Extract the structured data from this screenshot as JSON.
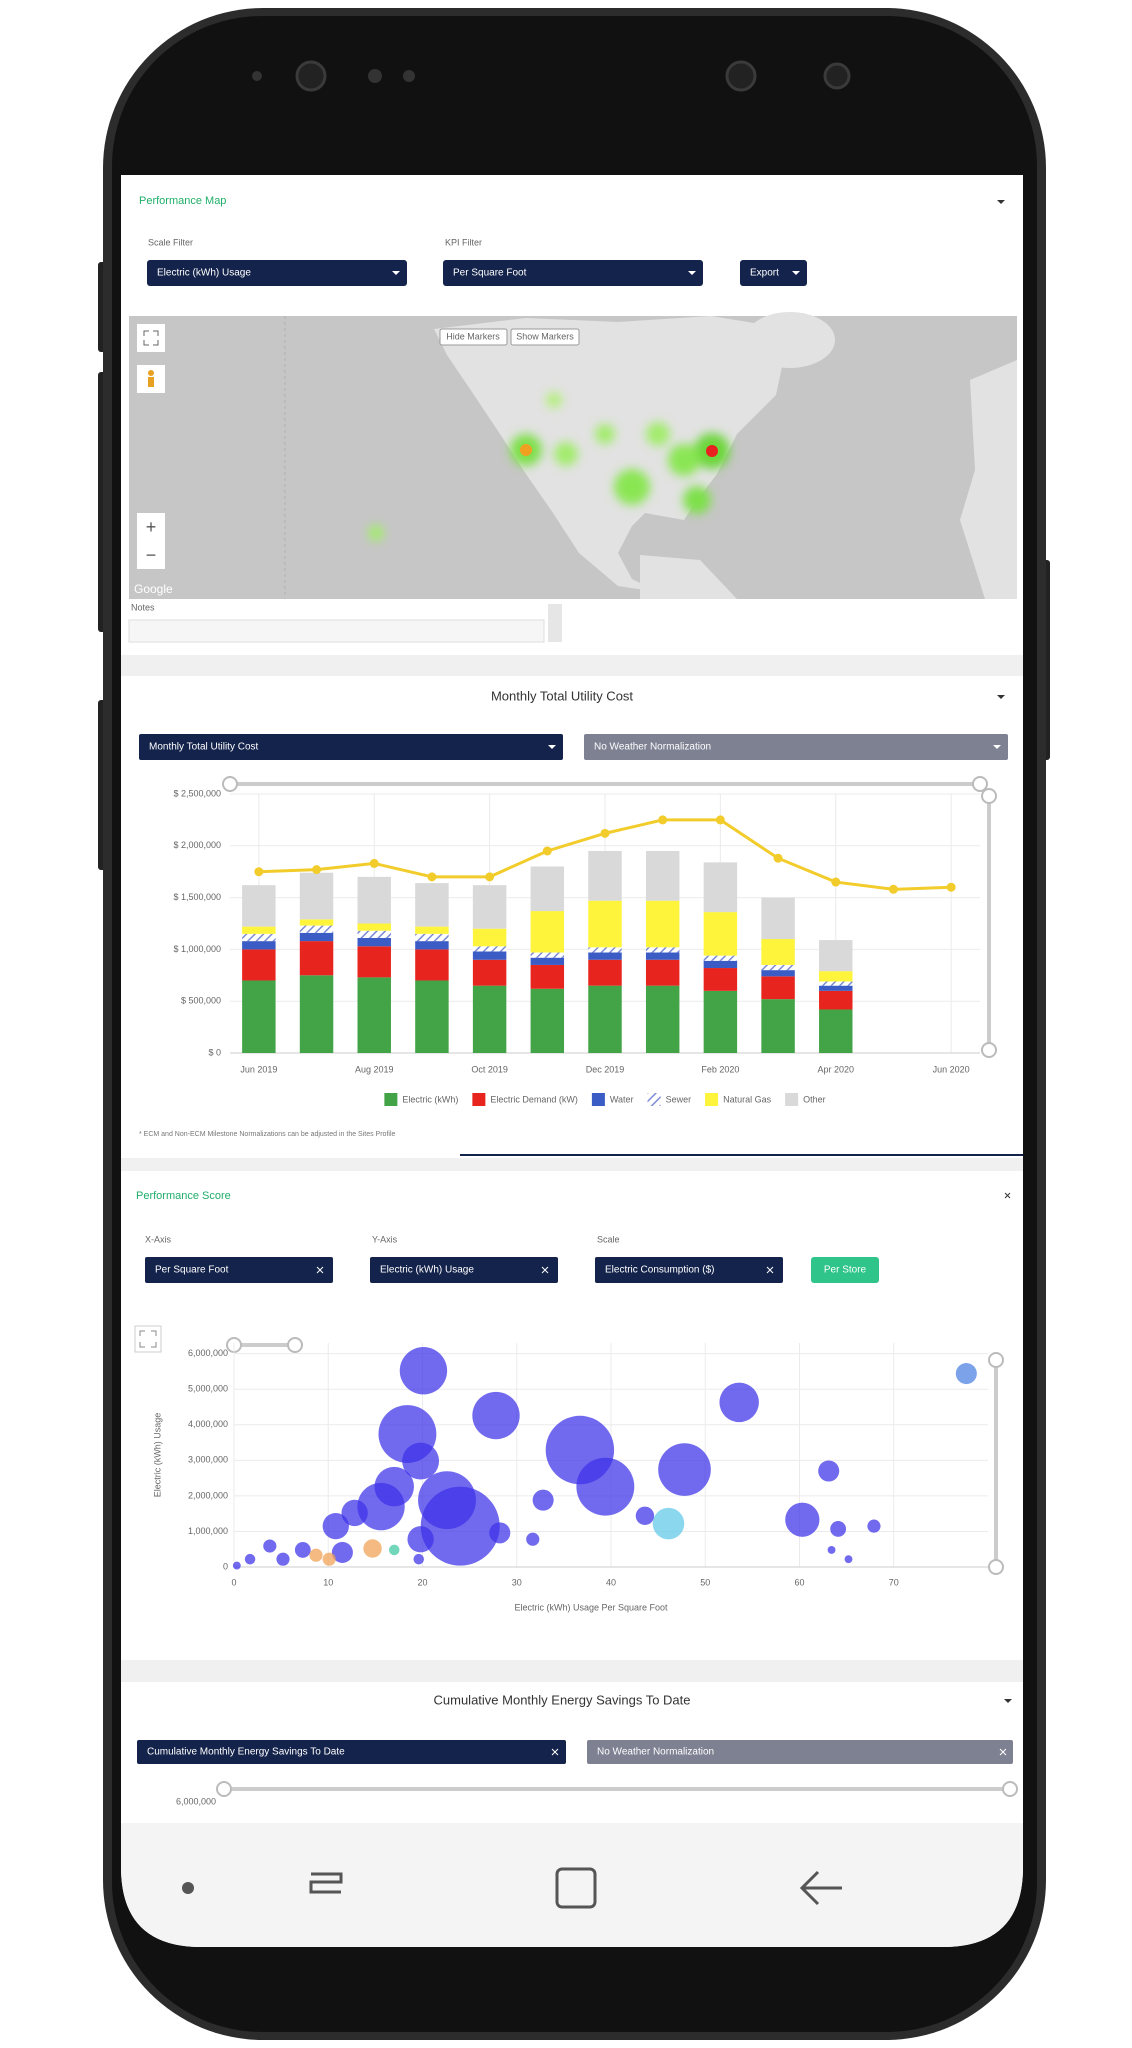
{
  "map_panel": {
    "title": "Performance Map",
    "scale_filter_label": "Scale Filter",
    "scale_filter": "Electric (kWh) Usage",
    "kpi_filter_label": "KPI Filter",
    "kpi_filter": "Per Square Foot",
    "export": "Export",
    "hide_markers": "Hide Markers",
    "show_markers": "Show Markers",
    "zoom_in": "+",
    "zoom_out": "−",
    "google": "Google",
    "notes": "Notes"
  },
  "cost_panel": {
    "title": "Monthly Total Utility Cost",
    "metric": "Monthly Total Utility Cost",
    "normalization": "No Weather Normalization",
    "footnote": "* ECM and Non-ECM Milestone Normalizations can be adjusted in the Sites Profile"
  },
  "score_panel": {
    "title": "Performance Score",
    "x_axis_label": "X-Axis",
    "x_axis": "Per Square Foot",
    "y_axis_label": "Y-Axis",
    "y_axis": "Electric (kWh) Usage",
    "scale_label": "Scale",
    "scale": "Electric Consumption ($)",
    "button": "Per Store"
  },
  "savings_panel": {
    "title": "Cumulative Monthly Energy Savings To Date",
    "metric": "Cumulative Monthly Energy Savings To Date",
    "normalization": "No Weather Normalization",
    "top_tick": "6,000,000"
  },
  "chart_data": [
    {
      "type": "bar",
      "stacked": true,
      "grid": true,
      "categories": [
        "Jun 2019",
        null,
        "Aug 2019",
        null,
        "Oct 2019",
        null,
        "Dec 2019",
        null,
        "Feb 2020",
        null,
        "Apr 2020",
        null,
        "Jun 2020"
      ],
      "series": [
        {
          "name": "Electric (kWh)",
          "color": "#43a447",
          "values": [
            700000,
            750000,
            730000,
            700000,
            650000,
            620000,
            650000,
            650000,
            600000,
            520000,
            420000,
            null,
            null
          ]
        },
        {
          "name": "Electric Demand (kW)",
          "color": "#e8241f",
          "values": [
            300000,
            330000,
            300000,
            300000,
            250000,
            230000,
            250000,
            250000,
            220000,
            220000,
            180000,
            null,
            null
          ]
        },
        {
          "name": "Water",
          "color": "#3a5cc4",
          "values": [
            80000,
            80000,
            80000,
            80000,
            80000,
            70000,
            70000,
            70000,
            70000,
            60000,
            50000,
            null,
            null
          ]
        },
        {
          "name": "Sewer",
          "color": "#7b8ad6",
          "pattern": "hatch",
          "values": [
            70000,
            70000,
            70000,
            70000,
            50000,
            50000,
            50000,
            50000,
            50000,
            50000,
            40000,
            null,
            null
          ]
        },
        {
          "name": "Natural Gas",
          "color": "#fdf43b",
          "values": [
            70000,
            60000,
            70000,
            70000,
            170000,
            400000,
            450000,
            450000,
            420000,
            250000,
            100000,
            null,
            null
          ]
        },
        {
          "name": "Other",
          "color": "#d9d9d9",
          "values": [
            400000,
            450000,
            450000,
            420000,
            420000,
            430000,
            480000,
            480000,
            480000,
            400000,
            300000,
            null,
            null
          ]
        }
      ],
      "line": {
        "color": "#f2cc2b",
        "values": [
          1750000,
          1770000,
          1830000,
          1700000,
          1700000,
          1950000,
          2120000,
          2250000,
          2250000,
          1880000,
          1650000,
          1580000,
          1600000
        ]
      },
      "ylim": [
        0,
        2500000
      ],
      "yticks": [
        {
          "value": 0,
          "label": "$ 0"
        },
        {
          "value": 500000,
          "label": "$ 500,000"
        },
        {
          "value": 1000000,
          "label": "$ 1,000,000"
        },
        {
          "value": 1500000,
          "label": "$ 1,500,000"
        },
        {
          "value": 2000000,
          "label": "$ 2,000,000"
        },
        {
          "value": 2500000,
          "label": "$ 2,500,000"
        }
      ]
    },
    {
      "type": "scatter",
      "grid": true,
      "x_label": "Electric (kWh) Usage Per Square Foot",
      "y_label": "Electric (kWh) Usage",
      "x": [
        20.1,
        27.8,
        53.6,
        18.4,
        36.7,
        39.4,
        47.8,
        24,
        22.6,
        15.6,
        19.8,
        17,
        12.8,
        10.8,
        60.3,
        63.1,
        64.1,
        67.9,
        77.7,
        46.1,
        32.8,
        43.6,
        28.2,
        19.8,
        11.5,
        7.3,
        3.8,
        1.7,
        5.2,
        8.7,
        14.7,
        10.1,
        17,
        31.7,
        63.4,
        65.2,
        19.6,
        0.3
      ],
      "values": [
        5520000,
        4260000,
        4630000,
        3740000,
        3290000,
        2260000,
        2740000,
        1150000,
        1880000,
        1700000,
        2980000,
        2260000,
        1520000,
        1150000,
        1330000,
        2700000,
        1070000,
        1150000,
        5440000,
        1220000,
        1880000,
        1440000,
        960000,
        780000,
        410000,
        480000,
        590000,
        220000,
        220000,
        330000,
        520000,
        220000,
        480000,
        780000,
        480000,
        220000,
        220000,
        40000
      ],
      "sizes": [
        18,
        18,
        15,
        22,
        26,
        22,
        20,
        30,
        22,
        18,
        14,
        15,
        10,
        10,
        13,
        8,
        6,
        5,
        8,
        12,
        8,
        7,
        8,
        10,
        8,
        6,
        5,
        4,
        5,
        5,
        7,
        5,
        4,
        5,
        3,
        3,
        4,
        3
      ],
      "colors": [
        "#3b30e8",
        "#3b30e8",
        "#3b30e8",
        "#3b30e8",
        "#3b30e8",
        "#3b30e8",
        "#3b30e8",
        "#3b30e8",
        "#3b30e8",
        "#3b30e8",
        "#3b30e8",
        "#3b30e8",
        "#3b30e8",
        "#3b30e8",
        "#3b30e8",
        "#3b30e8",
        "#3b30e8",
        "#3b30e8",
        "#4a7fe0",
        "#5ec8e8",
        "#3b30e8",
        "#3b30e8",
        "#3b30e8",
        "#3b30e8",
        "#3b30e8",
        "#3b30e8",
        "#3b30e8",
        "#3b30e8",
        "#3b30e8",
        "#f0a050",
        "#f0a050",
        "#f0a050",
        "#3cc8a0",
        "#3b30e8",
        "#3b30e8",
        "#3b30e8",
        "#3b30e8",
        "#3b30e8"
      ],
      "xlim": [
        0,
        80
      ],
      "xticks": [
        0,
        10,
        20,
        30,
        40,
        50,
        60,
        70
      ],
      "ylim": [
        0,
        6300000
      ],
      "yticks": [
        0,
        {
          "value": 1000000,
          "label": "1,000,000"
        },
        {
          "value": 2000000,
          "label": "2,000,000"
        },
        {
          "value": 3000000,
          "label": "3,000,000"
        },
        {
          "value": 4000000,
          "label": "4,000,000"
        },
        {
          "value": 5000000,
          "label": "5,000,000"
        },
        {
          "value": 6000000,
          "label": "6,000,000"
        }
      ]
    }
  ]
}
